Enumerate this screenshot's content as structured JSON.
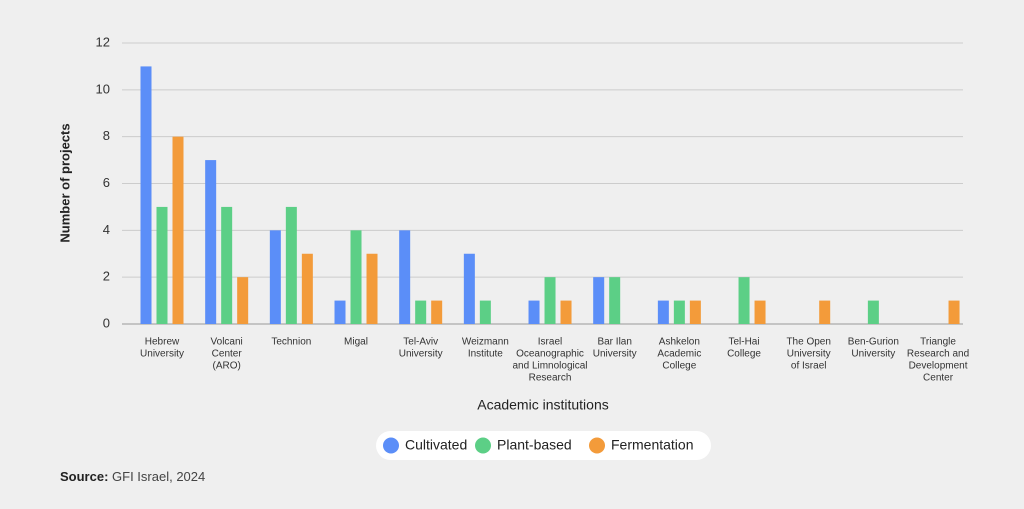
{
  "chart_data": {
    "type": "bar",
    "x_label": "Academic institutions",
    "y_label": "Number of projects",
    "categories": [
      [
        "Hebrew",
        "University"
      ],
      [
        "Volcani",
        "Center",
        "(ARO)"
      ],
      [
        "Technion"
      ],
      [
        "Migal"
      ],
      [
        "Tel-Aviv",
        "University"
      ],
      [
        "Weizmann",
        "Institute"
      ],
      [
        "Israel",
        "Oceanographic",
        "and Limnological",
        "Research"
      ],
      [
        "Bar Ilan",
        "University"
      ],
      [
        "Ashkelon",
        "Academic",
        "College"
      ],
      [
        "Tel-Hai",
        "College"
      ],
      [
        "The Open",
        "University",
        "of Israel"
      ],
      [
        "Ben-Gurion",
        "University"
      ],
      [
        "Triangle",
        "Research and",
        "Development",
        "Center"
      ]
    ],
    "series": [
      {
        "name": "Cultivated",
        "color": "#5b8ef8",
        "values": [
          11,
          7,
          4,
          1,
          4,
          3,
          1,
          2,
          1,
          0,
          0,
          0,
          0
        ]
      },
      {
        "name": "Plant-based",
        "color": "#5ccf86",
        "values": [
          5,
          5,
          5,
          4,
          1,
          1,
          2,
          2,
          1,
          2,
          0,
          1,
          0
        ]
      },
      {
        "name": "Fermentation",
        "color": "#f39b3a",
        "values": [
          8,
          2,
          3,
          3,
          1,
          0,
          1,
          0,
          1,
          1,
          1,
          0,
          1
        ]
      }
    ],
    "ylim": [
      0,
      12
    ],
    "yticks": [
      0,
      2,
      4,
      6,
      8,
      10,
      12
    ],
    "grid": true,
    "source_label": "Source:",
    "source": "GFI Israel, 2024"
  }
}
